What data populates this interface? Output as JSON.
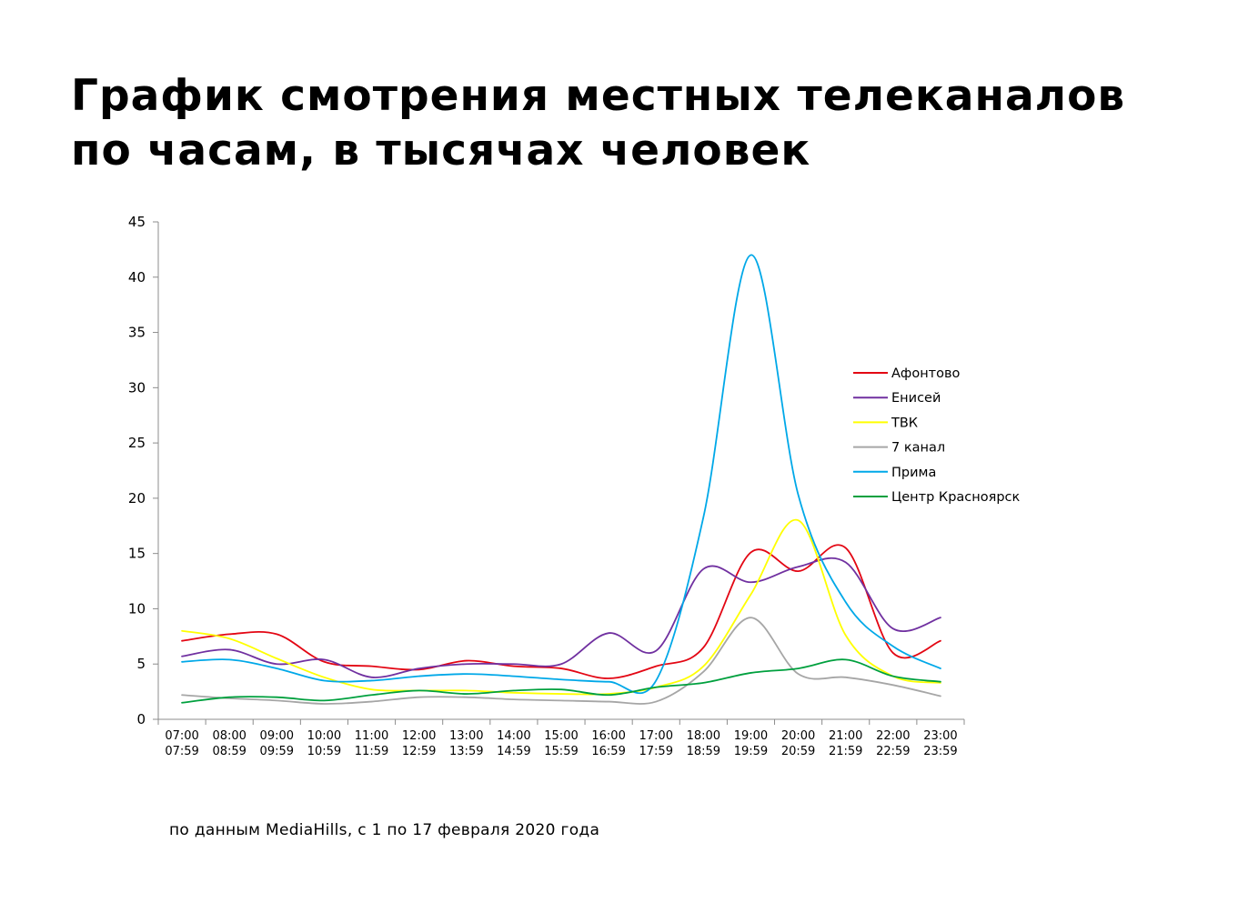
{
  "title": {
    "line1": "График смотрения местных телеканалов",
    "line2": "по часам, в тысячах человек"
  },
  "footnote": "по данным MediaHills, с 1 по 17 февраля 2020 года",
  "chart_data": {
    "type": "line",
    "title": "График смотрения местных телеканалов по часам, в тысячах человек",
    "xlabel": "",
    "ylabel": "",
    "ylim": [
      0,
      45
    ],
    "yticks": [
      0,
      5,
      10,
      15,
      20,
      25,
      30,
      35,
      40,
      45
    ],
    "ytick_labels": [
      "0",
      "5",
      "10",
      "15",
      "20",
      "25",
      "30",
      "35",
      "40",
      "45"
    ],
    "grid": false,
    "legend": "right",
    "categories": [
      {
        "start": "07:00",
        "end": "07:59"
      },
      {
        "start": "08:00",
        "end": "08:59"
      },
      {
        "start": "09:00",
        "end": "09:59"
      },
      {
        "start": "10:00",
        "end": "10:59"
      },
      {
        "start": "11:00",
        "end": "11:59"
      },
      {
        "start": "12:00",
        "end": "12:59"
      },
      {
        "start": "13:00",
        "end": "13:59"
      },
      {
        "start": "14:00",
        "end": "14:59"
      },
      {
        "start": "15:00",
        "end": "15:59"
      },
      {
        "start": "16:00",
        "end": "16:59"
      },
      {
        "start": "17:00",
        "end": "17:59"
      },
      {
        "start": "18:00",
        "end": "18:59"
      },
      {
        "start": "19:00",
        "end": "19:59"
      },
      {
        "start": "20:00",
        "end": "20:59"
      },
      {
        "start": "21:00",
        "end": "21:59"
      },
      {
        "start": "22:00",
        "end": "22:59"
      },
      {
        "start": "23:00",
        "end": "23:59"
      }
    ],
    "series": [
      {
        "name": "Афонтово",
        "color": "#e30613",
        "values": [
          7.1,
          7.7,
          7.7,
          5.2,
          4.8,
          4.5,
          5.3,
          4.8,
          4.6,
          3.7,
          4.8,
          6.5,
          15.1,
          13.4,
          15.5,
          6.0,
          7.1
        ]
      },
      {
        "name": "Енисей",
        "color": "#7030a0",
        "values": [
          5.7,
          6.3,
          5.0,
          5.4,
          3.8,
          4.6,
          5.0,
          5.0,
          5.0,
          7.8,
          6.2,
          13.6,
          12.4,
          13.8,
          14.2,
          8.2,
          9.2
        ]
      },
      {
        "name": "ТВК",
        "color": "#ffff00",
        "values": [
          8.0,
          7.3,
          5.5,
          3.8,
          2.7,
          2.6,
          2.6,
          2.4,
          2.3,
          2.3,
          2.9,
          4.8,
          11.3,
          18.0,
          7.6,
          3.9,
          3.3
        ]
      },
      {
        "name": "7 канал",
        "color": "#a6a6a6",
        "values": [
          2.2,
          1.9,
          1.7,
          1.4,
          1.6,
          2.0,
          2.0,
          1.8,
          1.7,
          1.6,
          1.6,
          4.3,
          9.2,
          4.1,
          3.8,
          3.1,
          2.1
        ]
      },
      {
        "name": "Прима",
        "color": "#00a8e8",
        "values": [
          5.2,
          5.4,
          4.6,
          3.5,
          3.5,
          3.9,
          4.1,
          3.9,
          3.6,
          3.4,
          3.5,
          18.3,
          42.0,
          20.3,
          10.6,
          6.6,
          4.6
        ]
      },
      {
        "name": "Центр Красноярск",
        "color": "#00a03e",
        "values": [
          1.5,
          2.0,
          2.0,
          1.7,
          2.2,
          2.6,
          2.3,
          2.6,
          2.7,
          2.2,
          2.9,
          3.3,
          4.2,
          4.6,
          5.4,
          3.9,
          3.4
        ]
      }
    ]
  }
}
